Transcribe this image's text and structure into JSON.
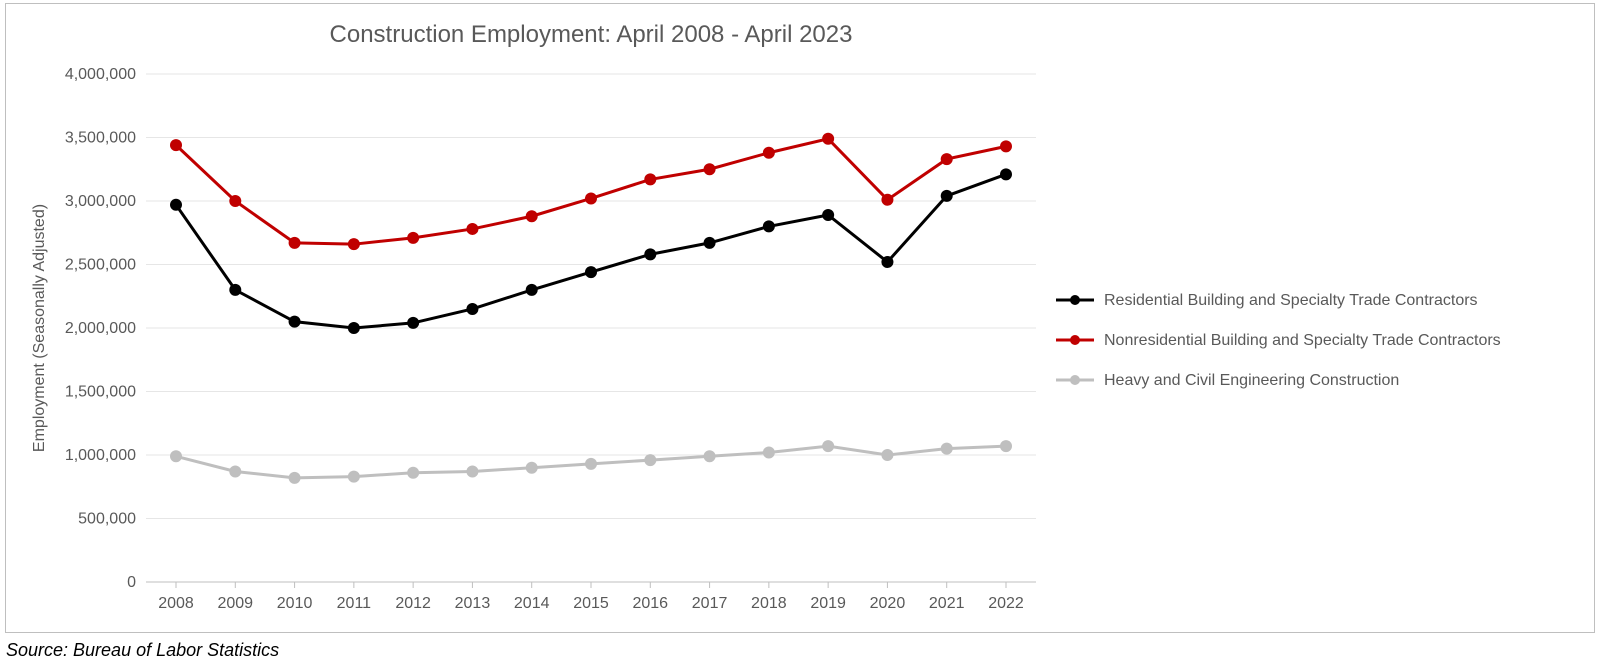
{
  "chart": {
    "type": "line",
    "title": "Construction Employment: April 2008 - April 2023",
    "title_fontsize": 24,
    "title_color": "#595959",
    "ylabel": "Employment (Seasonally Adjusted)",
    "ylabel_fontsize": 16,
    "background_color": "#ffffff",
    "border_color": "#bfbfbf",
    "grid_color": "#e6e6e6",
    "axis_color": "#bfbfbf",
    "tick_color": "#595959",
    "tick_fontsize": 16,
    "x_categories": [
      "2008",
      "2009",
      "2010",
      "2011",
      "2012",
      "2013",
      "2014",
      "2015",
      "2016",
      "2017",
      "2018",
      "2019",
      "2020",
      "2021",
      "2022"
    ],
    "ylim": [
      0,
      4000000
    ],
    "ytick_step": 500000,
    "ytick_labels": [
      "0",
      "500,000",
      "1,000,000",
      "1,500,000",
      "2,000,000",
      "2,500,000",
      "3,000,000",
      "3,500,000",
      "4,000,000"
    ],
    "line_width": 3,
    "marker_radius": 6,
    "series": [
      {
        "name": "Residential Building and Specialty Trade Contractors",
        "color": "#000000",
        "values": [
          2970000,
          2300000,
          2050000,
          2000000,
          2040000,
          2150000,
          2300000,
          2440000,
          2580000,
          2670000,
          2800000,
          2890000,
          2520000,
          3040000,
          3210000
        ]
      },
      {
        "name": "Nonresidential Building and Specialty Trade Contractors",
        "color": "#c00000",
        "values": [
          3440000,
          3000000,
          2670000,
          2660000,
          2710000,
          2780000,
          2880000,
          3020000,
          3170000,
          3250000,
          3380000,
          3490000,
          3010000,
          3330000,
          3430000
        ]
      },
      {
        "name": "Heavy and Civil Engineering Construction",
        "color": "#bfbfbf",
        "values": [
          990000,
          870000,
          820000,
          830000,
          860000,
          870000,
          900000,
          930000,
          960000,
          990000,
          1020000,
          1070000,
          1000000,
          1050000,
          1070000
        ]
      }
    ],
    "legend_fontsize": 16,
    "legend_line_length": 38,
    "legend_marker_radius": 5
  },
  "source_note": "Source: Bureau of Labor Statistics"
}
